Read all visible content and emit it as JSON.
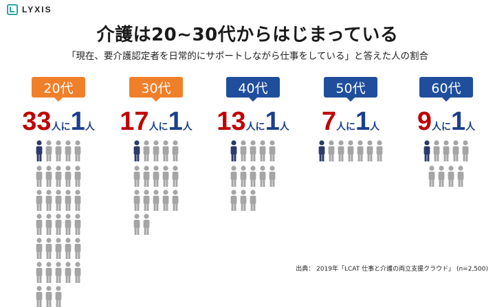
{
  "logo": {
    "text": "LYXIS",
    "icon": "lyxis-logo-mark-icon",
    "color": "#2aa6a0"
  },
  "title": "介護は20~30代からはじまっている",
  "subtitle": "「現在、要介護認定者を日常的にサポートしながら仕事をしている」と答えた人の割合",
  "colors": {
    "orange": "#f07f2a",
    "blue": "#1f4e9c",
    "ratio_number": "#c00000",
    "ratio_one": "#1b3f8f",
    "person_highlight": "#2b3b6b",
    "person_gray": "#a5a5a5"
  },
  "groups": [
    {
      "label": "20代",
      "badge_color": "orange",
      "number": "33",
      "connector": "人に",
      "one": "1",
      "unit": "人",
      "total_people": 33
    },
    {
      "label": "30代",
      "badge_color": "orange",
      "number": "17",
      "connector": "人に",
      "one": "1",
      "unit": "人",
      "total_people": 17
    },
    {
      "label": "40代",
      "badge_color": "blue",
      "number": "13",
      "connector": "人に",
      "one": "1",
      "unit": "人",
      "total_people": 13
    },
    {
      "label": "50代",
      "badge_color": "blue",
      "number": "7",
      "connector": "人に",
      "one": "1",
      "unit": "人",
      "total_people": 7
    },
    {
      "label": "60代",
      "badge_color": "blue",
      "number": "9",
      "connector": "人に",
      "one": "1",
      "unit": "人",
      "total_people": 9
    }
  ],
  "source": "出典： 2019年「LCAT 仕事と介護の両立支援クラウド」 (n=2,500)"
}
